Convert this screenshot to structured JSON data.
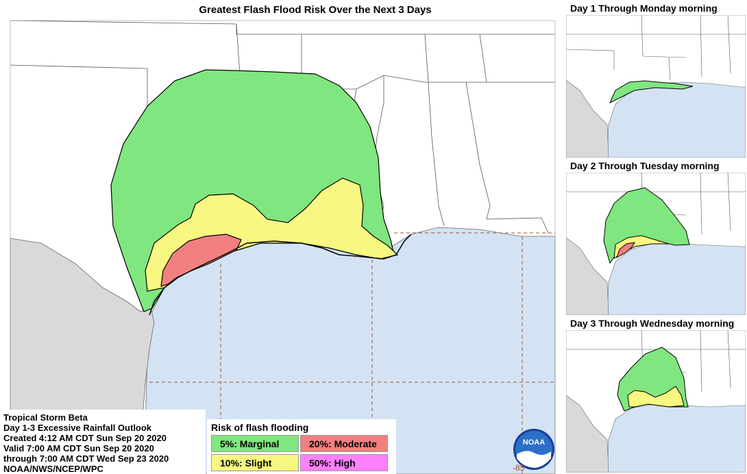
{
  "title": "Greatest Flash Flood Risk Over the Next 3 Days",
  "info": {
    "storm": "Tropical Storm Beta",
    "product": "Day 1-3 Excessive Rainfall Outlook",
    "created": "Created 4:12 AM CDT Sun Sep 20 2020",
    "valid": "Valid 7:00 AM CDT Sun Sep 20 2020",
    "through": "through 7:00 AM CDT Wed Sep 23 2020",
    "agency": "NOAA/NWS/NCEP/WPC"
  },
  "legend": {
    "title": "Risk of flash flooding",
    "items": [
      {
        "label": "5%: Marginal",
        "color": "#80e680"
      },
      {
        "label": "20%: Moderate",
        "color": "#f28080"
      },
      {
        "label": "10%: Slight",
        "color": "#f7f782"
      },
      {
        "label": "50%: High",
        "color": "#ff80ff"
      }
    ]
  },
  "panels": [
    {
      "title": "Day 1 Through Monday morning"
    },
    {
      "title": "Day 2 Through Tuesday morning"
    },
    {
      "title": "Day 3 Through Wednesday morning"
    }
  ],
  "longitude_label": "-85",
  "logo_text": "NOAA",
  "colors": {
    "water": "#d3e3f3",
    "land": "#ffffff",
    "foreign_land": "#d9d9d9",
    "marginal": "#80e680",
    "slight": "#f7f782",
    "moderate": "#f28080",
    "grid": "#a0522d"
  }
}
